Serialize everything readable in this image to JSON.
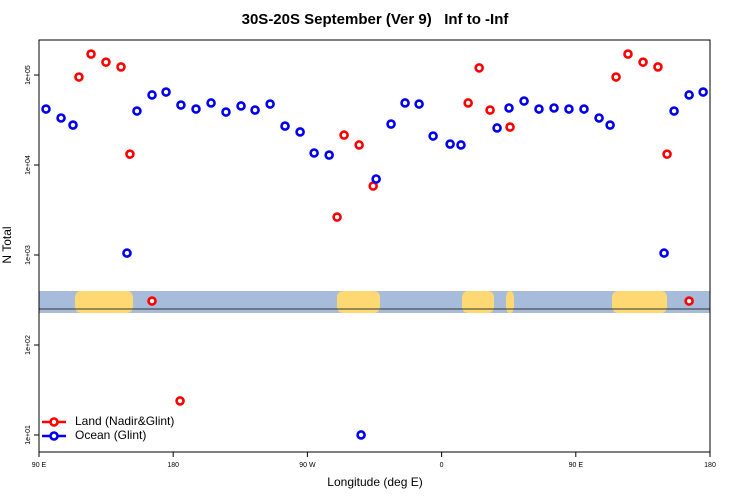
{
  "chart_data": {
    "type": "scatter",
    "title": "30S-20S September (Ver 9)   Inf to -Inf",
    "xlabel": "Longitude (deg E)",
    "ylabel": "N Total",
    "log_y": true,
    "legend": "bottom-left",
    "xlim": [
      90,
      540
    ],
    "xticks": [
      {
        "value": 90,
        "label": "90 E"
      },
      {
        "value": 180,
        "label": "180"
      },
      {
        "value": 270,
        "label": "90 W"
      },
      {
        "value": 360,
        "label": "0"
      },
      {
        "value": 450,
        "label": "90 E"
      },
      {
        "value": 540,
        "label": "180"
      }
    ],
    "ylim": [
      6.47,
      245000
    ],
    "yticks": [
      {
        "value": 10,
        "label": "1e+01"
      },
      {
        "value": 100,
        "label": "1e+02"
      },
      {
        "value": 1000,
        "label": "1e+03"
      },
      {
        "value": 10000,
        "label": "1e+04"
      },
      {
        "value": 100000,
        "label": "1e+05"
      }
    ],
    "series": [
      {
        "name": "Land (Nadir&Glint)",
        "color": "#ff0000",
        "x": [
          116.8,
          124.9,
          134.9,
          145,
          151,
          165.8,
          184.6,
          289.9,
          294.6,
          304.7,
          314.1,
          377.8,
          385.2,
          392.5,
          405.9,
          477,
          485,
          495.1,
          505.1,
          511.2,
          526
        ],
        "values": [
          95000,
          171000,
          139000,
          123000,
          13200,
          308,
          23.9,
          2640,
          21500,
          16700,
          5840,
          48900,
          120000,
          40800,
          26400,
          95000,
          171000,
          139000,
          123000,
          13200,
          308
        ]
      },
      {
        "name": "Ocean (Glint)",
        "color": "#0000ee",
        "x": [
          94.7,
          104.8,
          112.8,
          149,
          155.7,
          165.8,
          175.2,
          185.2,
          195.3,
          205.4,
          215.4,
          225.5,
          234.9,
          245,
          255,
          265.1,
          274.5,
          284.6,
          306,
          316.1,
          326.1,
          335.5,
          344.9,
          354.3,
          365.7,
          373,
          397.2,
          405.2,
          415.3,
          425.3,
          435.4,
          445.4,
          455.5,
          465.6,
          473,
          509.2,
          515.9,
          526,
          535.4
        ],
        "values": [
          41900,
          33300,
          27800,
          1050,
          39800,
          60000,
          64700,
          46400,
          41900,
          48900,
          38800,
          45300,
          40800,
          47600,
          27100,
          23300,
          13600,
          12900,
          10,
          6990,
          28500,
          48900,
          47600,
          21000,
          17100,
          16700,
          25800,
          43000,
          51400,
          41900,
          43000,
          41900,
          41900,
          33300,
          27800,
          1050,
          39800,
          60000,
          64700
        ]
      }
    ]
  }
}
